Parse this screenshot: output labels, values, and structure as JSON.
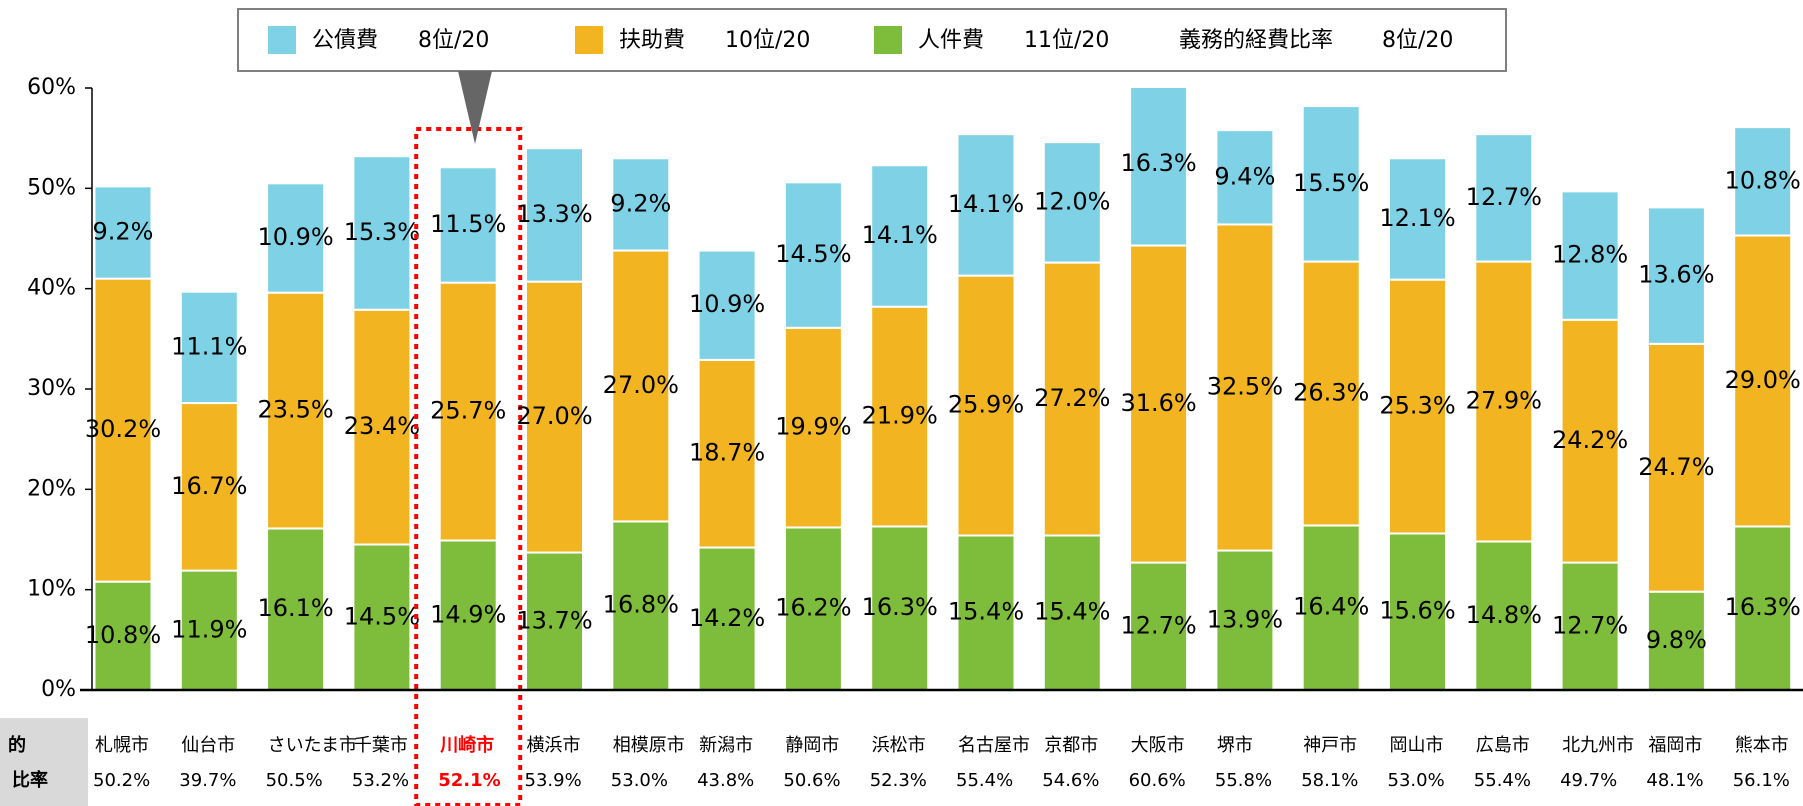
{
  "chart_data": {
    "type": "stacked_bar",
    "categories": [
      "札幌市",
      "仙台市",
      "さいたま市",
      "千葉市",
      "川崎市",
      "横浜市",
      "相模原市",
      "新潟市",
      "静岡市",
      "浜松市",
      "名古屋市",
      "京都市",
      "大阪市",
      "堺市",
      "神戸市",
      "岡山市",
      "広島市",
      "北九州市",
      "福岡市",
      "熊本市"
    ],
    "series": [
      {
        "name": "人件費",
        "rank": "11位/20",
        "color": "#7dbd3b",
        "values": [
          10.8,
          11.9,
          16.1,
          14.5,
          14.9,
          13.7,
          16.8,
          14.2,
          16.2,
          16.3,
          15.4,
          15.4,
          12.7,
          13.9,
          16.4,
          15.6,
          14.8,
          12.7,
          9.8,
          16.3
        ],
        "value_labels": [
          "10.8%",
          "11.9%",
          "16.1%",
          "14.5%",
          "14.9%",
          "13.7%",
          "16.8%",
          "14.2%",
          "16.2%",
          "16.3%",
          "15.4%",
          "15.4%",
          "12.7%",
          "13.9%",
          "16.4%",
          "15.6%",
          "14.8%",
          "12.7%",
          "9.8%",
          "16.3%"
        ]
      },
      {
        "name": "扶助費",
        "rank": "10位/20",
        "color": "#f2b420",
        "values": [
          30.2,
          16.7,
          23.5,
          23.4,
          25.7,
          27.0,
          27.0,
          18.7,
          19.9,
          21.9,
          25.9,
          27.2,
          31.6,
          32.5,
          26.3,
          25.3,
          27.9,
          24.2,
          24.7,
          29.0
        ],
        "value_labels": [
          "30.2%",
          "16.7%",
          "23.5%",
          "23.4%",
          "25.7%",
          "27.0%",
          "27.0%",
          "18.7%",
          "19.9%",
          "21.9%",
          "25.9%",
          "27.2%",
          "31.6%",
          "32.5%",
          "26.3%",
          "25.3%",
          "27.9%",
          "24.2%",
          "24.7%",
          "29.0%"
        ]
      },
      {
        "name": "公債費",
        "rank": "8位/20",
        "color": "#7fd2e6",
        "values": [
          9.2,
          11.1,
          10.9,
          15.3,
          11.5,
          13.3,
          9.2,
          10.9,
          14.5,
          14.1,
          14.1,
          12.0,
          16.3,
          9.4,
          15.5,
          12.1,
          12.7,
          12.8,
          13.6,
          10.8
        ],
        "value_labels": [
          "9.2%",
          "11.1%",
          "10.9%",
          "15.3%",
          "11.5%",
          "13.3%",
          "9.2%",
          "10.9%",
          "14.5%",
          "14.1%",
          "14.1%",
          "12.0%",
          "16.3%",
          "9.4%",
          "15.5%",
          "12.1%",
          "12.7%",
          "12.8%",
          "13.6%",
          "10.8%"
        ]
      }
    ],
    "totals_header": [
      "的",
      "比率"
    ],
    "totals": [
      50.2,
      39.7,
      50.5,
      53.2,
      52.1,
      53.9,
      53.0,
      43.8,
      50.6,
      52.3,
      55.4,
      54.6,
      60.6,
      55.8,
      58.1,
      53.0,
      55.4,
      49.7,
      48.1,
      56.1
    ],
    "total_labels": [
      "50.2%",
      "39.7%",
      "50.5%",
      "53.2%",
      "52.1%",
      "53.9%",
      "53.0%",
      "43.8%",
      "50.6%",
      "52.3%",
      "55.4%",
      "54.6%",
      "60.6%",
      "55.8%",
      "58.1%",
      "53.0%",
      "55.4%",
      "49.7%",
      "48.1%",
      "56.1%"
    ],
    "legend_extra": {
      "name": "義務的経費比率",
      "rank": "8位/20"
    },
    "highlight": "川崎市",
    "highlight_color": "#ff0000",
    "ylim": [
      0,
      60
    ],
    "yticks": [
      {
        "value": 0,
        "label": "0%"
      },
      {
        "value": 10,
        "label": "10%"
      },
      {
        "value": 20,
        "label": "20%"
      },
      {
        "value": 30,
        "label": "30%"
      },
      {
        "value": 40,
        "label": "40%"
      },
      {
        "value": 50,
        "label": "50%"
      },
      {
        "value": 60,
        "label": "60%"
      }
    ]
  }
}
